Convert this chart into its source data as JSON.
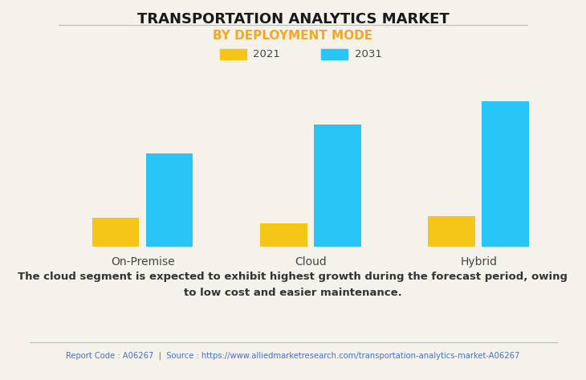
{
  "title": "TRANSPORTATION ANALYTICS MARKET",
  "subtitle": "BY DEPLOYMENT MODE",
  "categories": [
    "On-Premise",
    "Cloud",
    "Hybrid"
  ],
  "legend_labels": [
    "2021",
    "2031"
  ],
  "values_2021": [
    1.0,
    0.82,
    1.05
  ],
  "values_2031": [
    3.2,
    4.2,
    5.0
  ],
  "bar_color_2021": "#F5C518",
  "bar_color_2031": "#29C4F6",
  "background_color": "#F5F2EC",
  "plot_bg_color": "#F5F2EC",
  "title_fontsize": 13,
  "subtitle_fontsize": 11,
  "bar_width": 0.28,
  "annotation_text": "The cloud segment is expected to exhibit highest growth during the forecast period, owing\nto low cost and easier maintenance.",
  "footer_text": "Report Code : A06267  |  Source : https://www.alliedmarketresearch.com/transportation-analytics-market-A06267",
  "subtitle_color": "#F5A623",
  "footer_color": "#4472C4",
  "annotation_color": "#333333",
  "title_color": "#1a1a1a",
  "ylim": [
    0,
    6.0
  ],
  "yticks": [
    0,
    1.2,
    2.4,
    3.6,
    4.8,
    6.0
  ],
  "grid_color": "#d8d4cc"
}
